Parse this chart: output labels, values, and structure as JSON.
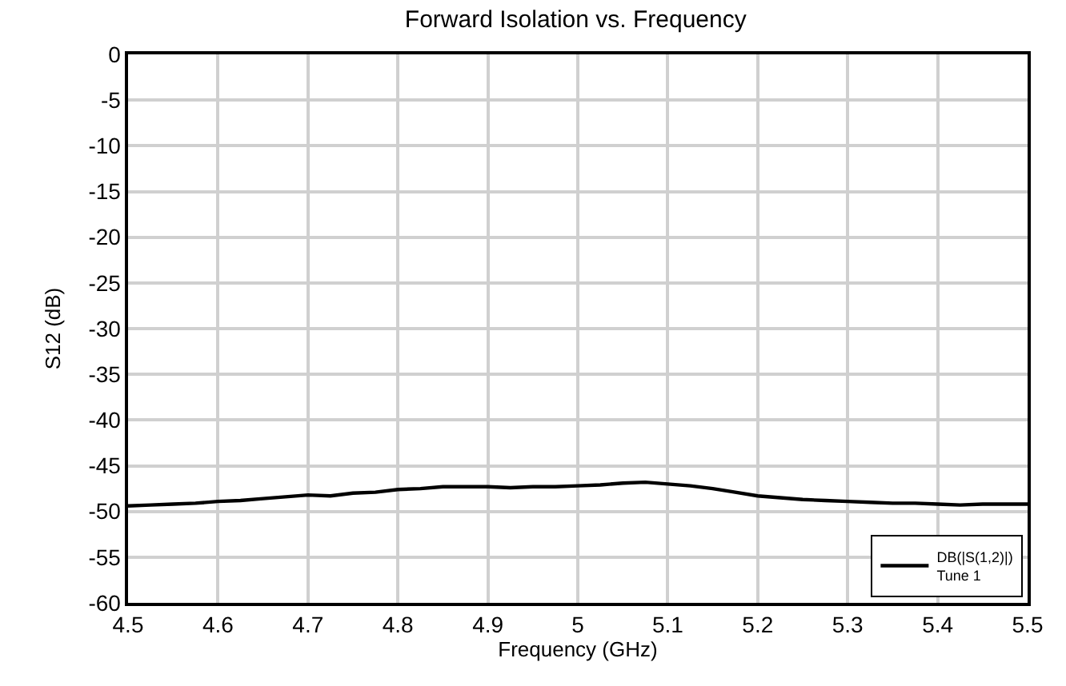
{
  "chart_data": {
    "type": "line",
    "title": "Forward Isolation vs. Frequency",
    "xlabel": "Frequency (GHz)",
    "ylabel": "S12 (dB)",
    "x": [
      4.5,
      4.525,
      4.55,
      4.575,
      4.6,
      4.625,
      4.65,
      4.675,
      4.7,
      4.725,
      4.75,
      4.775,
      4.8,
      4.825,
      4.85,
      4.875,
      4.9,
      4.925,
      4.95,
      4.975,
      5.0,
      5.025,
      5.05,
      5.075,
      5.1,
      5.125,
      5.15,
      5.175,
      5.2,
      5.225,
      5.25,
      5.275,
      5.3,
      5.325,
      5.35,
      5.375,
      5.4,
      5.425,
      5.45,
      5.475,
      5.5
    ],
    "series": [
      {
        "name": "DB(|S(1,2)|)\nTune 1",
        "color": "#000000",
        "values": [
          -49.4,
          -49.3,
          -49.2,
          -49.1,
          -48.9,
          -48.8,
          -48.6,
          -48.4,
          -48.2,
          -48.3,
          -48.0,
          -47.9,
          -47.6,
          -47.5,
          -47.3,
          -47.3,
          -47.3,
          -47.4,
          -47.3,
          -47.3,
          -47.2,
          -47.1,
          -46.9,
          -46.8,
          -47.0,
          -47.2,
          -47.5,
          -47.9,
          -48.3,
          -48.5,
          -48.7,
          -48.8,
          -48.9,
          -49.0,
          -49.1,
          -49.1,
          -49.2,
          -49.3,
          -49.2,
          -49.2,
          -49.2
        ]
      }
    ],
    "xlim": [
      4.5,
      5.5
    ],
    "xticks": [
      4.5,
      4.6,
      4.7,
      4.8,
      4.9,
      5,
      5.1,
      5.2,
      5.3,
      5.4,
      5.5
    ],
    "ylim": [
      -60,
      0
    ],
    "yticks": [
      -60,
      -55,
      -50,
      -45,
      -40,
      -35,
      -30,
      -25,
      -20,
      -15,
      -10,
      -5,
      0
    ],
    "grid": true,
    "legend": "bottom right",
    "marker": "none",
    "line_style": "solid"
  }
}
